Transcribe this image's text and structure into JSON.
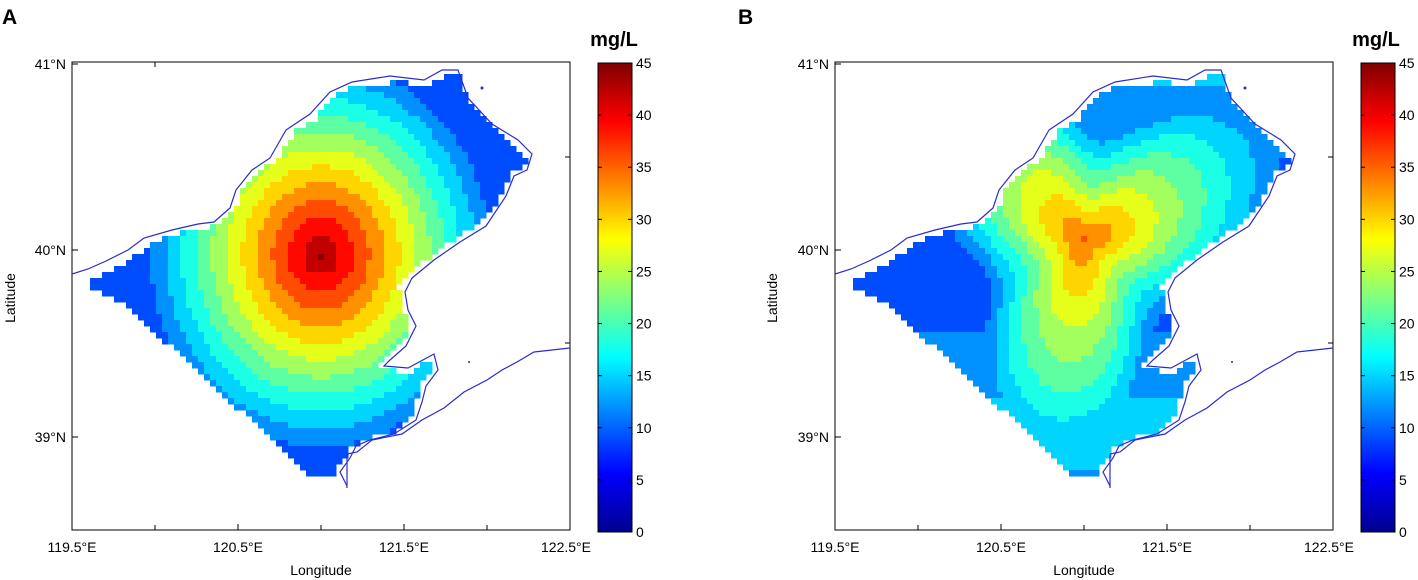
{
  "panels": [
    {
      "label": "A",
      "xlabel": "Longitude",
      "ylabel": "Latitude",
      "x_ticks": [
        "119.5°E",
        "120.5°E",
        "121.5°E",
        "122.5°E"
      ],
      "y_ticks": [
        "41°N",
        "40°N",
        "39°N"
      ],
      "colorbar_unit": "mg/L",
      "colorbar_ticks": [
        "0",
        "5",
        "10",
        "15",
        "20",
        "25",
        "30",
        "35",
        "40",
        "45"
      ]
    },
    {
      "label": "B",
      "xlabel": "Longitude",
      "ylabel": "Latitude",
      "x_ticks": [
        "119.5°E",
        "120.5°E",
        "121.5°E",
        "122.5°E"
      ],
      "y_ticks": [
        "41°N",
        "40°N",
        "39°N"
      ],
      "colorbar_unit": "mg/L",
      "colorbar_ticks": [
        "0",
        "5",
        "10",
        "15",
        "20",
        "25",
        "30",
        "35",
        "40",
        "45"
      ]
    }
  ],
  "chart_data": [
    {
      "type": "heatmap",
      "panel": "A",
      "title": "",
      "xlabel": "Longitude",
      "ylabel": "Latitude",
      "xlim": [
        119.5,
        122.5
      ],
      "ylim": [
        38.5,
        41.0
      ],
      "value_range": [
        0,
        45
      ],
      "colorbar_label": "mg/L",
      "contour_step": 3,
      "pattern": "radial",
      "peak": {
        "lon": 121.0,
        "lat": 39.97,
        "value": 44
      },
      "edge_value": 13
    },
    {
      "type": "heatmap",
      "panel": "B",
      "title": "",
      "xlabel": "Longitude",
      "ylabel": "Latitude",
      "xlim": [
        119.5,
        122.5
      ],
      "ylim": [
        38.5,
        41.0
      ],
      "value_range": [
        0,
        45
      ],
      "colorbar_label": "mg/L",
      "contour_step": 3,
      "pattern": "triangular",
      "peak": {
        "lon": 121.0,
        "lat": 40.05,
        "value": 38
      },
      "edge_value": 12
    }
  ]
}
